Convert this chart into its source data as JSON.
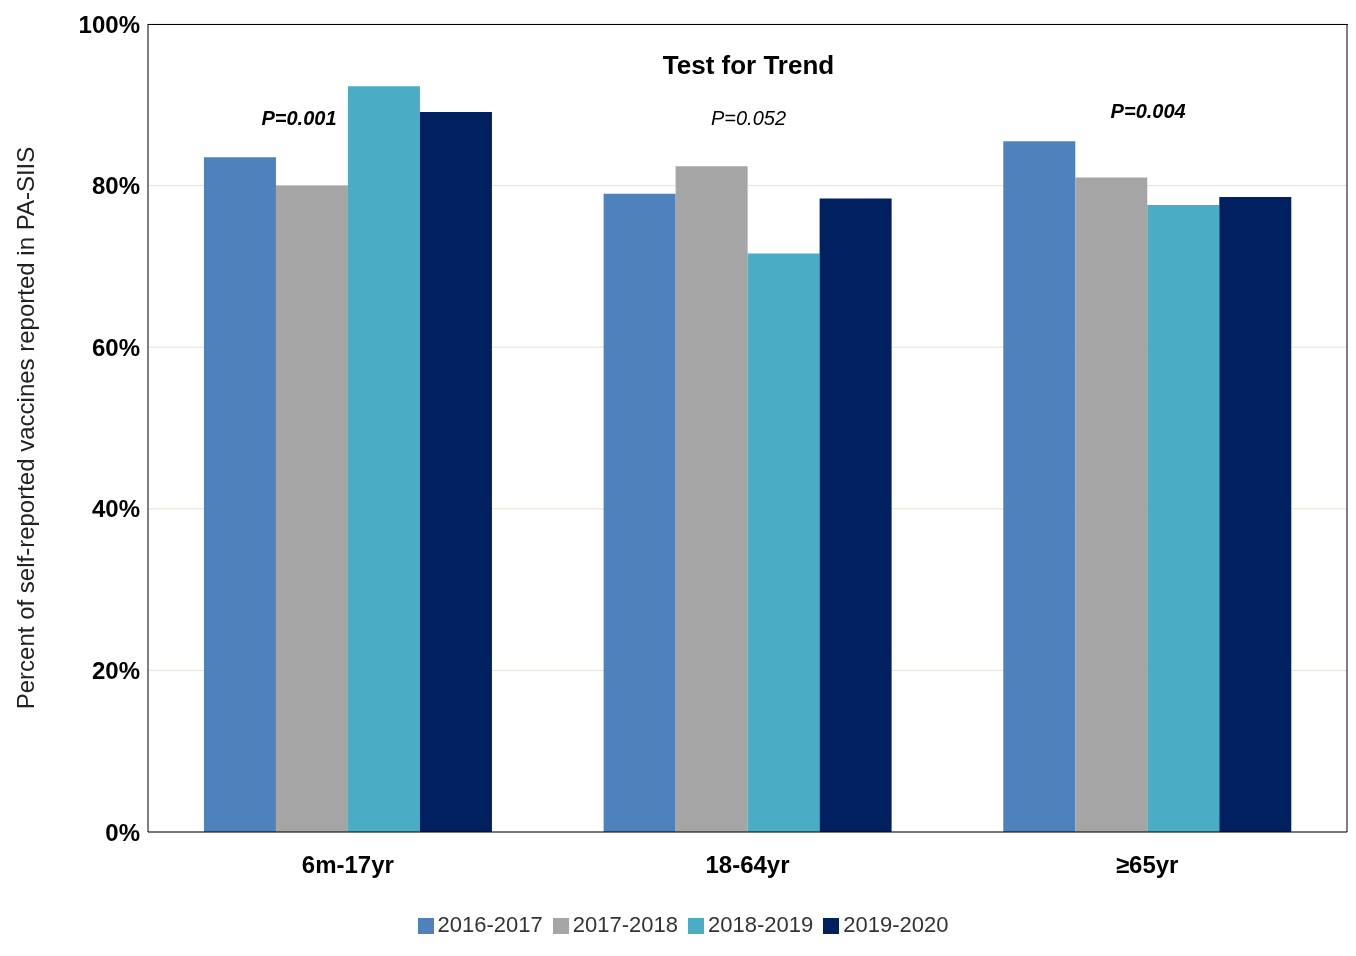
{
  "chart_data": {
    "type": "bar",
    "ylabel": "Percent of self-reported vaccines reported in PA-SIIS",
    "categories": [
      "6m-17yr",
      "18-64yr",
      "≥65yr"
    ],
    "series": [
      {
        "name": "2016-2017",
        "color": "#4f81bd",
        "values": [
          83.5,
          79,
          85.5
        ]
      },
      {
        "name": "2017-2018",
        "color": "#a5a5a5",
        "values": [
          80,
          82.4,
          81
        ]
      },
      {
        "name": "2018-2019",
        "color": "#4bacc6",
        "values": [
          92.3,
          71.6,
          77.6
        ]
      },
      {
        "name": "2019-2020",
        "color": "#002060",
        "values": [
          89.1,
          78.4,
          78.6
        ]
      }
    ],
    "ylim": [
      0,
      100
    ],
    "yticks": [
      {
        "value": 0,
        "label": "0%"
      },
      {
        "value": 20,
        "label": "20%"
      },
      {
        "value": 40,
        "label": "40%"
      },
      {
        "value": 60,
        "label": "60%"
      },
      {
        "value": 80,
        "label": "80%"
      },
      {
        "value": 100,
        "label": "100%"
      }
    ],
    "grid": "y",
    "legend": "bottom",
    "annotations": [
      "Test for Trend",
      "P=0.001",
      "P=0.052",
      "P=0.004"
    ]
  }
}
